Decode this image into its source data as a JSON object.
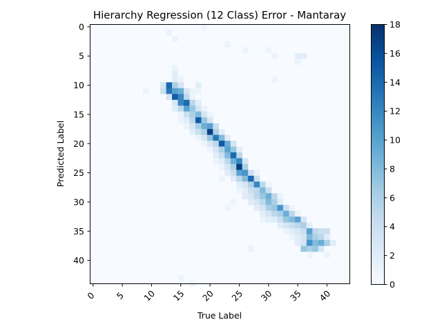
{
  "chart_data": {
    "type": "heatmap",
    "title": "Hierarchy Regression (12 Class) Error - Mantaray",
    "xlabel": "True Label",
    "ylabel": "Predicted Label",
    "x_range": [
      0,
      44
    ],
    "y_range": [
      0,
      44
    ],
    "y_inverted": true,
    "x_ticks": [
      0,
      5,
      10,
      15,
      20,
      25,
      30,
      35,
      40
    ],
    "y_ticks": [
      0,
      5,
      10,
      15,
      20,
      25,
      30,
      35,
      40
    ],
    "colorbar": {
      "min": 0,
      "max": 18,
      "ticks": [
        0,
        2,
        4,
        6,
        8,
        10,
        12,
        14,
        16,
        18
      ],
      "colormap": "Blues"
    },
    "grid": false,
    "cells": [
      [
        13,
        1,
        1
      ],
      [
        19,
        0,
        1
      ],
      [
        14,
        2,
        1
      ],
      [
        23,
        3,
        1
      ],
      [
        26,
        4,
        1
      ],
      [
        30,
        4,
        1
      ],
      [
        31,
        5,
        1
      ],
      [
        35,
        5,
        2
      ],
      [
        36,
        5,
        2
      ],
      [
        35,
        6,
        1
      ],
      [
        14,
        7,
        1
      ],
      [
        14,
        8,
        2
      ],
      [
        31,
        9,
        1
      ],
      [
        14,
        9,
        2
      ],
      [
        15,
        9,
        1
      ],
      [
        12,
        10,
        3
      ],
      [
        13,
        10,
        14
      ],
      [
        14,
        10,
        6
      ],
      [
        15,
        10,
        3
      ],
      [
        18,
        10,
        2
      ],
      [
        9,
        11,
        1
      ],
      [
        12,
        11,
        4
      ],
      [
        13,
        11,
        13
      ],
      [
        14,
        11,
        10
      ],
      [
        15,
        11,
        9
      ],
      [
        16,
        11,
        3
      ],
      [
        17,
        11,
        1
      ],
      [
        18,
        11,
        1
      ],
      [
        13,
        12,
        3
      ],
      [
        14,
        12,
        15
      ],
      [
        15,
        12,
        12
      ],
      [
        16,
        12,
        5
      ],
      [
        17,
        12,
        1
      ],
      [
        14,
        13,
        3
      ],
      [
        15,
        13,
        12
      ],
      [
        16,
        13,
        14
      ],
      [
        17,
        13,
        5
      ],
      [
        18,
        13,
        2
      ],
      [
        14,
        14,
        2
      ],
      [
        15,
        14,
        5
      ],
      [
        16,
        14,
        10
      ],
      [
        17,
        14,
        7
      ],
      [
        18,
        14,
        3
      ],
      [
        19,
        14,
        1
      ],
      [
        15,
        15,
        1
      ],
      [
        16,
        15,
        4
      ],
      [
        17,
        15,
        6
      ],
      [
        18,
        15,
        8
      ],
      [
        19,
        15,
        3
      ],
      [
        20,
        15,
        1
      ],
      [
        15,
        16,
        1
      ],
      [
        16,
        16,
        2
      ],
      [
        17,
        16,
        5
      ],
      [
        18,
        16,
        15
      ],
      [
        19,
        16,
        7
      ],
      [
        20,
        16,
        3
      ],
      [
        16,
        17,
        1
      ],
      [
        17,
        17,
        3
      ],
      [
        18,
        17,
        6
      ],
      [
        19,
        17,
        9
      ],
      [
        20,
        17,
        10
      ],
      [
        21,
        17,
        4
      ],
      [
        17,
        18,
        2
      ],
      [
        18,
        18,
        4
      ],
      [
        19,
        18,
        6
      ],
      [
        20,
        18,
        17
      ],
      [
        21,
        18,
        6
      ],
      [
        22,
        18,
        2
      ],
      [
        18,
        19,
        1
      ],
      [
        19,
        19,
        3
      ],
      [
        20,
        19,
        7
      ],
      [
        21,
        19,
        13
      ],
      [
        22,
        19,
        8
      ],
      [
        23,
        19,
        2
      ],
      [
        19,
        20,
        1
      ],
      [
        20,
        20,
        3
      ],
      [
        21,
        20,
        5
      ],
      [
        22,
        20,
        15
      ],
      [
        23,
        20,
        9
      ],
      [
        24,
        20,
        3
      ],
      [
        20,
        21,
        1
      ],
      [
        21,
        21,
        3
      ],
      [
        22,
        21,
        6
      ],
      [
        23,
        21,
        10
      ],
      [
        24,
        21,
        7
      ],
      [
        25,
        21,
        2
      ],
      [
        21,
        22,
        2
      ],
      [
        22,
        22,
        4
      ],
      [
        23,
        22,
        8
      ],
      [
        24,
        22,
        14
      ],
      [
        25,
        22,
        5
      ],
      [
        21,
        23,
        1
      ],
      [
        22,
        23,
        2
      ],
      [
        23,
        23,
        5
      ],
      [
        24,
        23,
        9
      ],
      [
        25,
        23,
        12
      ],
      [
        26,
        23,
        3
      ],
      [
        22,
        24,
        1
      ],
      [
        23,
        24,
        3
      ],
      [
        24,
        24,
        6
      ],
      [
        25,
        24,
        17
      ],
      [
        26,
        24,
        6
      ],
      [
        23,
        25,
        2
      ],
      [
        24,
        25,
        4
      ],
      [
        25,
        25,
        10
      ],
      [
        26,
        25,
        11
      ],
      [
        27,
        25,
        4
      ],
      [
        28,
        25,
        1
      ],
      [
        22,
        26,
        1
      ],
      [
        24,
        26,
        2
      ],
      [
        25,
        26,
        5
      ],
      [
        26,
        26,
        8
      ],
      [
        27,
        26,
        14
      ],
      [
        28,
        26,
        4
      ],
      [
        25,
        27,
        2
      ],
      [
        26,
        27,
        3
      ],
      [
        27,
        27,
        6
      ],
      [
        28,
        27,
        12
      ],
      [
        29,
        27,
        5
      ],
      [
        30,
        27,
        1
      ],
      [
        25,
        28,
        1
      ],
      [
        26,
        28,
        2
      ],
      [
        27,
        28,
        4
      ],
      [
        28,
        28,
        5
      ],
      [
        29,
        28,
        8
      ],
      [
        30,
        28,
        4
      ],
      [
        26,
        29,
        2
      ],
      [
        27,
        29,
        3
      ],
      [
        28,
        29,
        5
      ],
      [
        29,
        29,
        7
      ],
      [
        30,
        29,
        9
      ],
      [
        31,
        29,
        5
      ],
      [
        32,
        29,
        1
      ],
      [
        24,
        30,
        1
      ],
      [
        27,
        30,
        2
      ],
      [
        28,
        30,
        3
      ],
      [
        29,
        30,
        5
      ],
      [
        30,
        30,
        8
      ],
      [
        31,
        30,
        6
      ],
      [
        32,
        30,
        2
      ],
      [
        23,
        31,
        1
      ],
      [
        28,
        31,
        2
      ],
      [
        29,
        31,
        3
      ],
      [
        30,
        31,
        6
      ],
      [
        31,
        31,
        7
      ],
      [
        32,
        31,
        11
      ],
      [
        33,
        31,
        4
      ],
      [
        34,
        31,
        1
      ],
      [
        29,
        32,
        2
      ],
      [
        30,
        32,
        3
      ],
      [
        31,
        32,
        5
      ],
      [
        32,
        32,
        6
      ],
      [
        33,
        32,
        9
      ],
      [
        34,
        32,
        5
      ],
      [
        35,
        32,
        1
      ],
      [
        29,
        33,
        1
      ],
      [
        30,
        33,
        2
      ],
      [
        31,
        33,
        2
      ],
      [
        32,
        33,
        4
      ],
      [
        33,
        33,
        7
      ],
      [
        34,
        33,
        8
      ],
      [
        35,
        33,
        10
      ],
      [
        36,
        33,
        3
      ],
      [
        32,
        34,
        2
      ],
      [
        33,
        34,
        3
      ],
      [
        34,
        34,
        4
      ],
      [
        35,
        34,
        5
      ],
      [
        36,
        34,
        6
      ],
      [
        37,
        34,
        2
      ],
      [
        33,
        35,
        1
      ],
      [
        34,
        35,
        2
      ],
      [
        35,
        35,
        3
      ],
      [
        36,
        35,
        4
      ],
      [
        37,
        35,
        10
      ],
      [
        38,
        35,
        5
      ],
      [
        39,
        35,
        4
      ],
      [
        40,
        35,
        4
      ],
      [
        34,
        36,
        1
      ],
      [
        35,
        36,
        2
      ],
      [
        36,
        36,
        3
      ],
      [
        37,
        36,
        8
      ],
      [
        38,
        36,
        6
      ],
      [
        39,
        36,
        5
      ],
      [
        40,
        36,
        2
      ],
      [
        35,
        37,
        2
      ],
      [
        36,
        37,
        3
      ],
      [
        37,
        37,
        11
      ],
      [
        38,
        37,
        8
      ],
      [
        39,
        37,
        9
      ],
      [
        40,
        37,
        6
      ],
      [
        41,
        37,
        2
      ],
      [
        27,
        38,
        1
      ],
      [
        36,
        38,
        7
      ],
      [
        37,
        38,
        6
      ],
      [
        38,
        38,
        7
      ],
      [
        39,
        38,
        3
      ],
      [
        37,
        39,
        1
      ],
      [
        40,
        39,
        1
      ],
      [
        15,
        43,
        1
      ],
      [
        17,
        44,
        1
      ]
    ]
  }
}
